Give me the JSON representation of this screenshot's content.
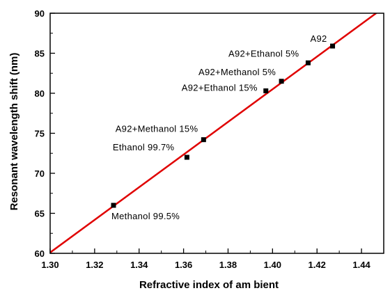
{
  "chart_data": {
    "type": "scatter",
    "title": "",
    "xlabel": "Refractive index of am bient",
    "ylabel": "Resonant wavelength shift (nm)",
    "xlim": [
      1.3,
      1.45
    ],
    "ylim": [
      60,
      90
    ],
    "xticks": [
      "1.30",
      "1.32",
      "1.34",
      "1.36",
      "1.38",
      "1.40",
      "1.42",
      "1.44"
    ],
    "yticks": [
      "60",
      "65",
      "70",
      "75",
      "80",
      "85",
      "90"
    ],
    "grid": false,
    "legend": "none",
    "marker_color": "#000000",
    "fit_line_color": "#e00000",
    "points": [
      {
        "label": "Methanol 99.5%",
        "x": 1.3285,
        "y": 66.0
      },
      {
        "label": "Ethanol 99.7%",
        "x": 1.3615,
        "y": 72.0
      },
      {
        "label": "A92+Methanol 15%",
        "x": 1.369,
        "y": 74.2
      },
      {
        "label": "A92+Ethanol 15%",
        "x": 1.397,
        "y": 80.3
      },
      {
        "label": "A92+Methanol 5%",
        "x": 1.404,
        "y": 81.5
      },
      {
        "label": "A92+Ethanol 5%",
        "x": 1.416,
        "y": 83.8
      },
      {
        "label": "A92",
        "x": 1.427,
        "y": 85.9
      }
    ],
    "fit_line": {
      "x": [
        1.3,
        1.45
      ],
      "y": [
        60.1,
        90.7
      ]
    }
  }
}
